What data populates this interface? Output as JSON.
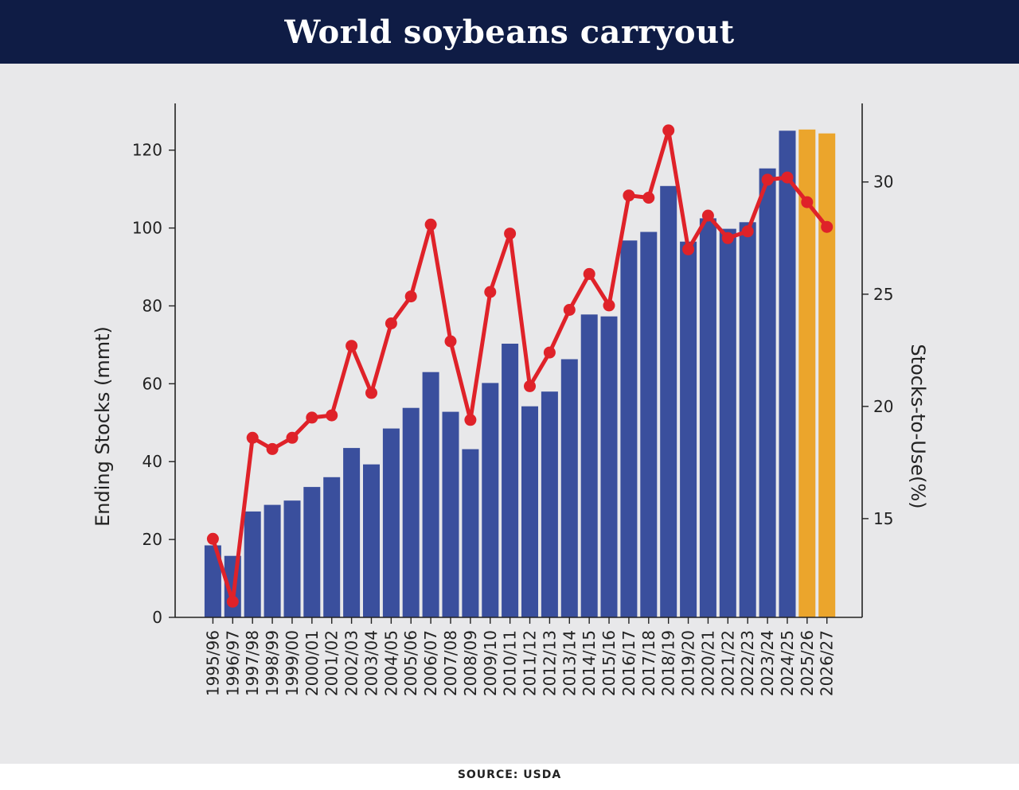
{
  "header": {
    "title": "World soybeans carryout"
  },
  "footer": {
    "source": "SOURCE: USDA"
  },
  "colors": {
    "banner_bg": "#0f1c45",
    "panel_bg": "#e8e8ea",
    "bar_actual": "#3a4f9d",
    "bar_projected": "#eba52c",
    "line": "#df2229"
  },
  "chart_data": {
    "type": "bar",
    "title": "World soybeans carryout",
    "categories": [
      "1995/96",
      "1996/97",
      "1997/98",
      "1998/99",
      "1999/00",
      "2000/01",
      "2001/02",
      "2002/03",
      "2003/04",
      "2004/05",
      "2005/06",
      "2006/07",
      "2007/08",
      "2008/09",
      "2009/10",
      "2010/11",
      "2011/12",
      "2012/13",
      "2013/14",
      "2014/15",
      "2015/16",
      "2016/17",
      "2017/18",
      "2018/19",
      "2019/20",
      "2020/21",
      "2021/22",
      "2022/23",
      "2023/24",
      "2024/25",
      "2025/26",
      "2026/27"
    ],
    "series": [
      {
        "type": "bar",
        "axis": "left",
        "values": [
          18.5,
          15.8,
          27.2,
          28.9,
          30.0,
          33.5,
          36.0,
          43.5,
          39.3,
          48.5,
          53.8,
          63.0,
          52.8,
          43.2,
          60.2,
          70.3,
          54.2,
          58.0,
          66.3,
          77.8,
          77.3,
          96.8,
          99.0,
          110.8,
          96.5,
          102.5,
          99.8,
          101.5,
          115.3,
          125.0,
          125.3,
          124.3
        ],
        "projected_categories": [
          "2025/26",
          "2026/27"
        ]
      },
      {
        "type": "line",
        "axis": "right",
        "values": [
          14.1,
          11.3,
          18.6,
          18.1,
          18.6,
          19.5,
          19.6,
          22.7,
          20.6,
          23.7,
          24.9,
          28.1,
          22.9,
          19.4,
          25.1,
          27.7,
          20.9,
          22.4,
          24.3,
          25.9,
          24.5,
          29.4,
          29.3,
          32.3,
          27.0,
          28.5,
          27.5,
          27.8,
          30.1,
          30.2,
          29.1,
          28.0
        ]
      }
    ],
    "ylabel": "Ending Stocks (mmt)",
    "ylim": [
      0,
      132
    ],
    "yticks": [
      0,
      20,
      40,
      60,
      80,
      100,
      120
    ],
    "y2label": "Stocks-to-Use(%)",
    "y2lim": [
      10.6,
      33.5
    ],
    "y2ticks": [
      15,
      20,
      25,
      30
    ],
    "grid": false,
    "legend": "none"
  }
}
